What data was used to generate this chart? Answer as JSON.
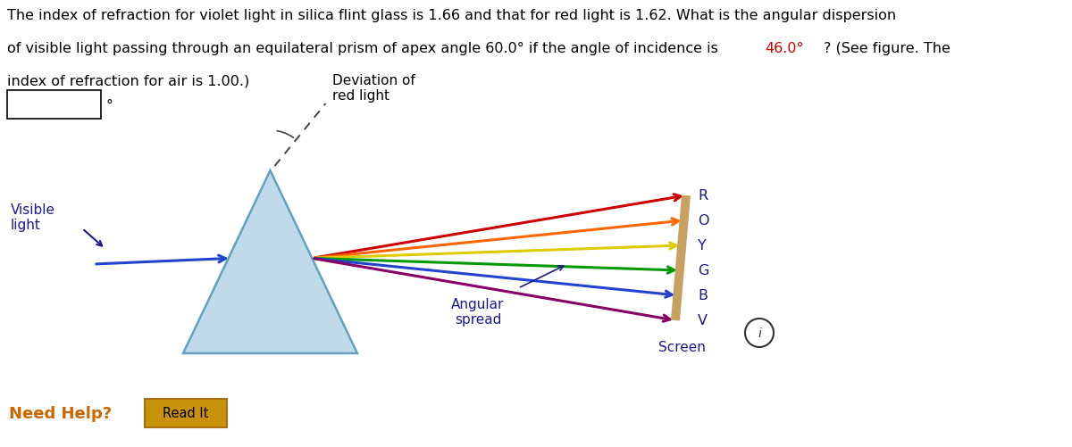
{
  "background_color": "#ffffff",
  "prism_color": "#b8d8e8",
  "prism_edge_color": "#5599bb",
  "degree_symbol": "°",
  "label_visible_light": "Visible\nlight",
  "label_deviation": "Deviation of\nred light",
  "label_angular_spread": "Angular\nspread",
  "label_screen": "Screen",
  "screen_color": "#c8a060",
  "ray_colors": [
    "#cc0000",
    "#ff6600",
    "#ddcc00",
    "#009900",
    "#2244cc",
    "#880066"
  ],
  "ray_labels": [
    "R",
    "O",
    "Y",
    "G",
    "B",
    "V"
  ],
  "label_color": "#1a1a8c",
  "need_help_color": "#cc6600",
  "need_help_text": "Need Help?",
  "read_it_text": "Read It",
  "read_it_bg": "#c8920a",
  "read_it_border": "#aa7010",
  "info_circle_color": "#333333",
  "text_line1": "The index of refraction for violet light in silica flint glass is 1.66 and that for red light is 1.62. What is the angular dispersion",
  "text_line2_before": "of visible light passing through an equilateral prism of apex angle 60.0° if the angle of incidence is ",
  "text_line2_highlight": "46.0°",
  "text_line2_after": "? (See figure. The",
  "text_line3": "index of refraction for air is 1.00.)",
  "highlight_color": "#cc0000",
  "font_size_body": 11.5,
  "font_size_labels": 11.0
}
